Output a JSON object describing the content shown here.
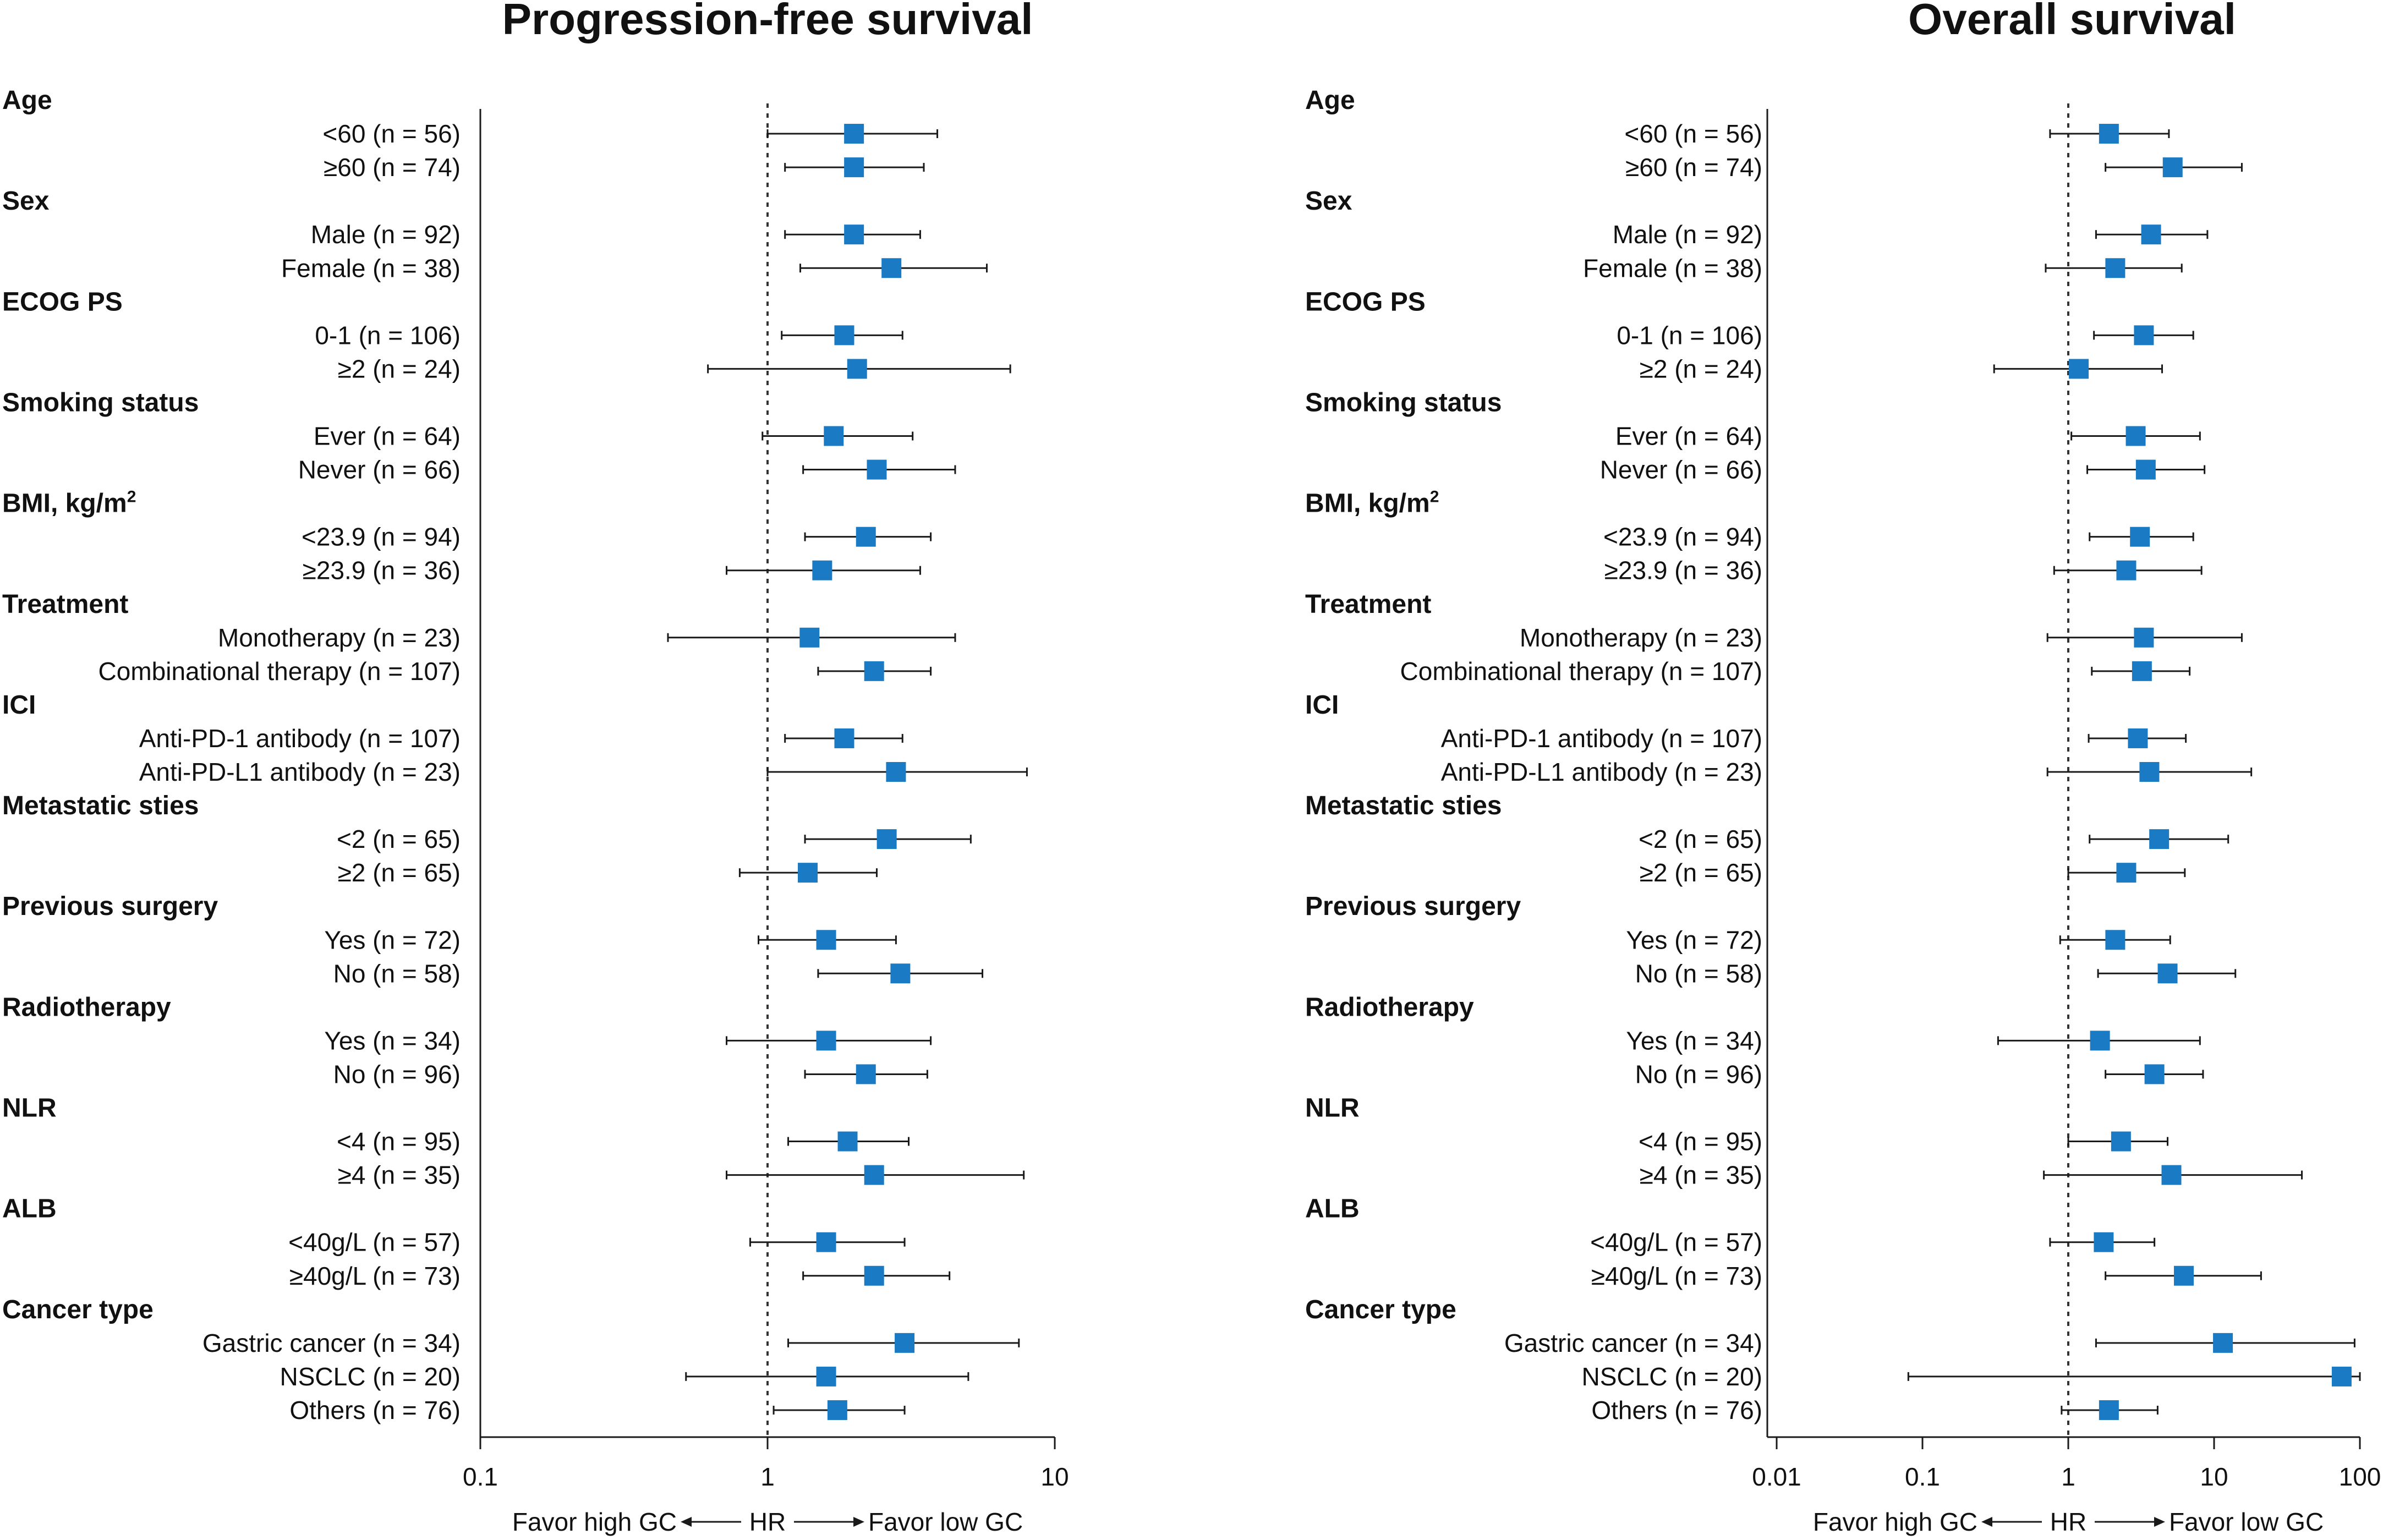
{
  "chart_data": [
    {
      "type": "forest",
      "title": "Progression-free survival",
      "xscale": "log",
      "xlim": [
        0.1,
        10
      ],
      "xticks": [
        "0.1",
        "1",
        "10"
      ],
      "reference_line": 1,
      "xlabel": {
        "left": "Favor high GC",
        "center": "HR",
        "right": "Favor low GC"
      },
      "rows": [
        {
          "kind": "group",
          "label": "Age"
        },
        {
          "kind": "item",
          "label": "<60 (n = 56)",
          "hr": 2.0,
          "lo": 1.0,
          "hi": 3.9
        },
        {
          "kind": "item",
          "label": "≥60 (n = 74)",
          "hr": 2.0,
          "lo": 1.15,
          "hi": 3.5
        },
        {
          "kind": "group",
          "label": "Sex"
        },
        {
          "kind": "item",
          "label": "Male (n = 92)",
          "hr": 2.0,
          "lo": 1.15,
          "hi": 3.4
        },
        {
          "kind": "item",
          "label": "Female (n = 38)",
          "hr": 2.7,
          "lo": 1.3,
          "hi": 5.8
        },
        {
          "kind": "group",
          "label": "ECOG PS"
        },
        {
          "kind": "item",
          "label": "0-1 (n = 106)",
          "hr": 1.85,
          "lo": 1.12,
          "hi": 2.95
        },
        {
          "kind": "item",
          "label": "≥2 (n = 24)",
          "hr": 2.05,
          "lo": 0.62,
          "hi": 7.0
        },
        {
          "kind": "group",
          "label": "Smoking status"
        },
        {
          "kind": "item",
          "label": "Ever (n = 64)",
          "hr": 1.7,
          "lo": 0.96,
          "hi": 3.2
        },
        {
          "kind": "item",
          "label": "Never (n = 66)",
          "hr": 2.4,
          "lo": 1.33,
          "hi": 4.5
        },
        {
          "kind": "group",
          "label": "BMI, kg/m",
          "sup": "2"
        },
        {
          "kind": "item",
          "label": "<23.9 (n = 94)",
          "hr": 2.2,
          "lo": 1.35,
          "hi": 3.7
        },
        {
          "kind": "item",
          "label": "≥23.9 (n = 36)",
          "hr": 1.55,
          "lo": 0.72,
          "hi": 3.4
        },
        {
          "kind": "group",
          "label": "Treatment"
        },
        {
          "kind": "item",
          "label": "Monotherapy (n = 23)",
          "hr": 1.4,
          "lo": 0.45,
          "hi": 4.5
        },
        {
          "kind": "item",
          "label": "Combinational therapy (n = 107)",
          "hr": 2.35,
          "lo": 1.5,
          "hi": 3.7
        },
        {
          "kind": "group",
          "label": "ICI"
        },
        {
          "kind": "item",
          "label": "Anti-PD-1 antibody (n = 107)",
          "hr": 1.85,
          "lo": 1.15,
          "hi": 2.95
        },
        {
          "kind": "item",
          "label": "Anti-PD-L1 antibody (n = 23)",
          "hr": 2.8,
          "lo": 1.0,
          "hi": 8.0
        },
        {
          "kind": "group",
          "label": "Metastatic sties"
        },
        {
          "kind": "item",
          "label": "<2 (n = 65)",
          "hr": 2.6,
          "lo": 1.35,
          "hi": 5.1
        },
        {
          "kind": "item",
          "label": "≥2 (n = 65)",
          "hr": 1.38,
          "lo": 0.8,
          "hi": 2.4
        },
        {
          "kind": "group",
          "label": "Previous surgery"
        },
        {
          "kind": "item",
          "label": "Yes (n = 72)",
          "hr": 1.6,
          "lo": 0.93,
          "hi": 2.8
        },
        {
          "kind": "item",
          "label": "No (n = 58)",
          "hr": 2.9,
          "lo": 1.5,
          "hi": 5.6
        },
        {
          "kind": "group",
          "label": "Radiotherapy"
        },
        {
          "kind": "item",
          "label": "Yes (n = 34)",
          "hr": 1.6,
          "lo": 0.72,
          "hi": 3.7
        },
        {
          "kind": "item",
          "label": "No (n = 96)",
          "hr": 2.2,
          "lo": 1.35,
          "hi": 3.6
        },
        {
          "kind": "group",
          "label": "NLR"
        },
        {
          "kind": "item",
          "label": "<4 (n = 95)",
          "hr": 1.9,
          "lo": 1.18,
          "hi": 3.1
        },
        {
          "kind": "item",
          "label": "≥4 (n = 35)",
          "hr": 2.35,
          "lo": 0.72,
          "hi": 7.8
        },
        {
          "kind": "group",
          "label": "ALB"
        },
        {
          "kind": "item",
          "label": "<40g/L (n = 57)",
          "hr": 1.6,
          "lo": 0.87,
          "hi": 3.0
        },
        {
          "kind": "item",
          "label": "≥40g/L (n = 73)",
          "hr": 2.35,
          "lo": 1.33,
          "hi": 4.3
        },
        {
          "kind": "group",
          "label": "Cancer type"
        },
        {
          "kind": "item",
          "label": "Gastric cancer (n = 34)",
          "hr": 3.0,
          "lo": 1.18,
          "hi": 7.5
        },
        {
          "kind": "item",
          "label": "NSCLC (n = 20)",
          "hr": 1.6,
          "lo": 0.52,
          "hi": 5.0
        },
        {
          "kind": "item",
          "label": "Others (n = 76)",
          "hr": 1.75,
          "lo": 1.05,
          "hi": 3.0
        }
      ]
    },
    {
      "type": "forest",
      "title": "Overall survival",
      "xscale": "log",
      "xlim": [
        0.01,
        100
      ],
      "xticks": [
        "0.01",
        "0.1",
        "1",
        "10",
        "100"
      ],
      "reference_line": 1,
      "xlabel": {
        "left": "Favor high GC",
        "center": "HR",
        "right": "Favor low GC"
      },
      "rows": [
        {
          "kind": "group",
          "label": "Age"
        },
        {
          "kind": "item",
          "label": "<60 (n = 56)",
          "hr": 1.9,
          "lo": 0.75,
          "hi": 4.9
        },
        {
          "kind": "item",
          "label": "≥60 (n = 74)",
          "hr": 5.2,
          "lo": 1.8,
          "hi": 15.5
        },
        {
          "kind": "group",
          "label": "Sex"
        },
        {
          "kind": "item",
          "label": "Male (n = 92)",
          "hr": 3.7,
          "lo": 1.55,
          "hi": 9.0
        },
        {
          "kind": "item",
          "label": "Female (n = 38)",
          "hr": 2.1,
          "lo": 0.7,
          "hi": 6.0
        },
        {
          "kind": "group",
          "label": "ECOG PS"
        },
        {
          "kind": "item",
          "label": "0-1 (n = 106)",
          "hr": 3.3,
          "lo": 1.5,
          "hi": 7.2
        },
        {
          "kind": "item",
          "label": "≥2 (n = 24)",
          "hr": 1.18,
          "lo": 0.31,
          "hi": 4.4
        },
        {
          "kind": "group",
          "label": "Smoking status"
        },
        {
          "kind": "item",
          "label": "Ever (n = 64)",
          "hr": 2.9,
          "lo": 1.05,
          "hi": 8.0
        },
        {
          "kind": "item",
          "label": "Never (n = 66)",
          "hr": 3.4,
          "lo": 1.35,
          "hi": 8.6
        },
        {
          "kind": "group",
          "label": "BMI, kg/m",
          "sup": "2"
        },
        {
          "kind": "item",
          "label": "<23.9 (n = 94)",
          "hr": 3.1,
          "lo": 1.4,
          "hi": 7.2
        },
        {
          "kind": "item",
          "label": "≥23.9 (n = 36)",
          "hr": 2.5,
          "lo": 0.8,
          "hi": 8.2
        },
        {
          "kind": "group",
          "label": "Treatment"
        },
        {
          "kind": "item",
          "label": "Monotherapy (n = 23)",
          "hr": 3.3,
          "lo": 0.72,
          "hi": 15.5
        },
        {
          "kind": "item",
          "label": "Combinational therapy (n = 107)",
          "hr": 3.2,
          "lo": 1.45,
          "hi": 6.8
        },
        {
          "kind": "group",
          "label": "ICI"
        },
        {
          "kind": "item",
          "label": "Anti-PD-1 antibody (n = 107)",
          "hr": 3.0,
          "lo": 1.38,
          "hi": 6.4
        },
        {
          "kind": "item",
          "label": "Anti-PD-L1 antibody (n = 23)",
          "hr": 3.6,
          "lo": 0.72,
          "hi": 18.0
        },
        {
          "kind": "group",
          "label": "Metastatic sties"
        },
        {
          "kind": "item",
          "label": "<2 (n = 65)",
          "hr": 4.2,
          "lo": 1.4,
          "hi": 12.5
        },
        {
          "kind": "item",
          "label": "≥2 (n = 65)",
          "hr": 2.5,
          "lo": 1.0,
          "hi": 6.3
        },
        {
          "kind": "group",
          "label": "Previous surgery"
        },
        {
          "kind": "item",
          "label": "Yes (n = 72)",
          "hr": 2.1,
          "lo": 0.88,
          "hi": 5.0
        },
        {
          "kind": "item",
          "label": "No (n = 58)",
          "hr": 4.8,
          "lo": 1.6,
          "hi": 14.0
        },
        {
          "kind": "group",
          "label": "Radiotherapy"
        },
        {
          "kind": "item",
          "label": "Yes (n = 34)",
          "hr": 1.65,
          "lo": 0.33,
          "hi": 8.0
        },
        {
          "kind": "item",
          "label": "No (n = 96)",
          "hr": 3.9,
          "lo": 1.8,
          "hi": 8.4
        },
        {
          "kind": "group",
          "label": "NLR"
        },
        {
          "kind": "item",
          "label": "<4 (n = 95)",
          "hr": 2.3,
          "lo": 1.0,
          "hi": 4.8
        },
        {
          "kind": "item",
          "label": "≥4 (n = 35)",
          "hr": 5.1,
          "lo": 0.68,
          "hi": 40.0
        },
        {
          "kind": "group",
          "label": "ALB"
        },
        {
          "kind": "item",
          "label": "<40g/L (n = 57)",
          "hr": 1.75,
          "lo": 0.75,
          "hi": 3.9
        },
        {
          "kind": "item",
          "label": "≥40g/L (n = 73)",
          "hr": 6.2,
          "lo": 1.8,
          "hi": 21.0
        },
        {
          "kind": "group",
          "label": "Cancer type"
        },
        {
          "kind": "item",
          "label": "Gastric cancer (n = 34)",
          "hr": 11.5,
          "lo": 1.55,
          "hi": 92.0
        },
        {
          "kind": "item",
          "label": "NSCLC (n = 20)",
          "hr": 75.0,
          "lo": 0.08,
          "hi": 100.0
        },
        {
          "kind": "item",
          "label": "Others (n = 76)",
          "hr": 1.9,
          "lo": 0.9,
          "hi": 4.1
        }
      ]
    }
  ],
  "colors": {
    "marker": "#1a7ac4",
    "line": "#1a1a1a",
    "text": "#111111"
  }
}
